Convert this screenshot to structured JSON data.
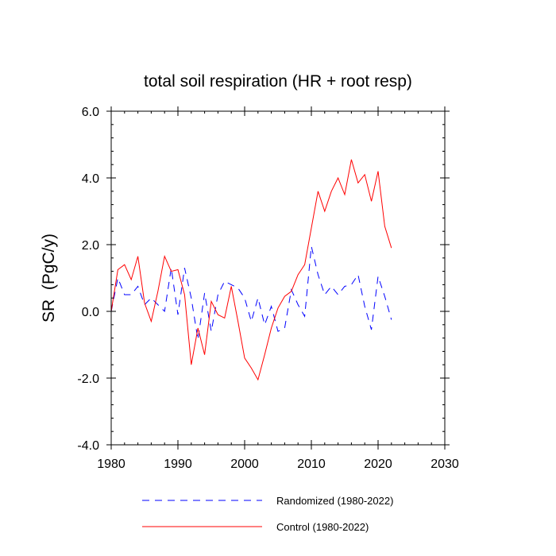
{
  "chart_data": {
    "type": "line",
    "title": "total soil respiration (HR + root resp)",
    "xlabel": "",
    "ylabel": "SR  (PgC/y)",
    "xlim": [
      1980,
      2030
    ],
    "ylim": [
      -4.0,
      6.0
    ],
    "x_ticks": [
      1980,
      1990,
      2000,
      2010,
      2020,
      2030
    ],
    "x_tick_labels": [
      "1980",
      "1990",
      "2000",
      "2010",
      "2020",
      "2030"
    ],
    "y_ticks": [
      -4.0,
      -2.0,
      0.0,
      2.0,
      4.0,
      6.0
    ],
    "y_tick_labels": [
      "-4.0",
      "-2.0",
      "0.0",
      "2.0",
      "4.0",
      "6.0"
    ],
    "legend_position": "bottom",
    "x": [
      1980,
      1981,
      1982,
      1983,
      1984,
      1985,
      1986,
      1987,
      1988,
      1989,
      1990,
      1991,
      1992,
      1993,
      1994,
      1995,
      1996,
      1997,
      1998,
      1999,
      2000,
      2001,
      2002,
      2003,
      2004,
      2005,
      2006,
      2007,
      2008,
      2009,
      2010,
      2011,
      2012,
      2013,
      2014,
      2015,
      2016,
      2017,
      2018,
      2019,
      2020,
      2021,
      2022
    ],
    "series": [
      {
        "name": "Randomized (1980-2022)",
        "color": "#0000ff",
        "style": "dashed",
        "values": [
          0.0,
          1.0,
          0.5,
          0.5,
          0.75,
          0.2,
          0.4,
          0.2,
          0.0,
          1.3,
          -0.1,
          1.3,
          0.4,
          -0.85,
          0.55,
          -0.6,
          0.5,
          0.9,
          0.8,
          0.7,
          0.4,
          -0.3,
          0.4,
          -0.4,
          0.15,
          -0.6,
          -0.5,
          0.65,
          0.2,
          -0.15,
          1.95,
          1.1,
          0.5,
          0.75,
          0.5,
          0.75,
          0.8,
          1.1,
          0.15,
          -0.55,
          1.05,
          0.45,
          -0.25
        ]
      },
      {
        "name": "Control (1980-2022)",
        "color": "#ff0000",
        "style": "solid",
        "values": [
          0.0,
          1.25,
          1.4,
          0.95,
          1.65,
          0.25,
          -0.3,
          0.6,
          1.65,
          1.2,
          1.25,
          0.5,
          -1.6,
          -0.5,
          -1.3,
          0.3,
          -0.1,
          -0.2,
          0.75,
          -0.3,
          -1.4,
          -1.7,
          -2.05,
          -1.3,
          -0.5,
          0.1,
          0.45,
          0.6,
          1.1,
          1.4,
          2.5,
          3.6,
          3.0,
          3.6,
          4.0,
          3.5,
          4.55,
          3.85,
          4.1,
          3.3,
          4.2,
          2.55,
          1.9
        ]
      }
    ]
  }
}
